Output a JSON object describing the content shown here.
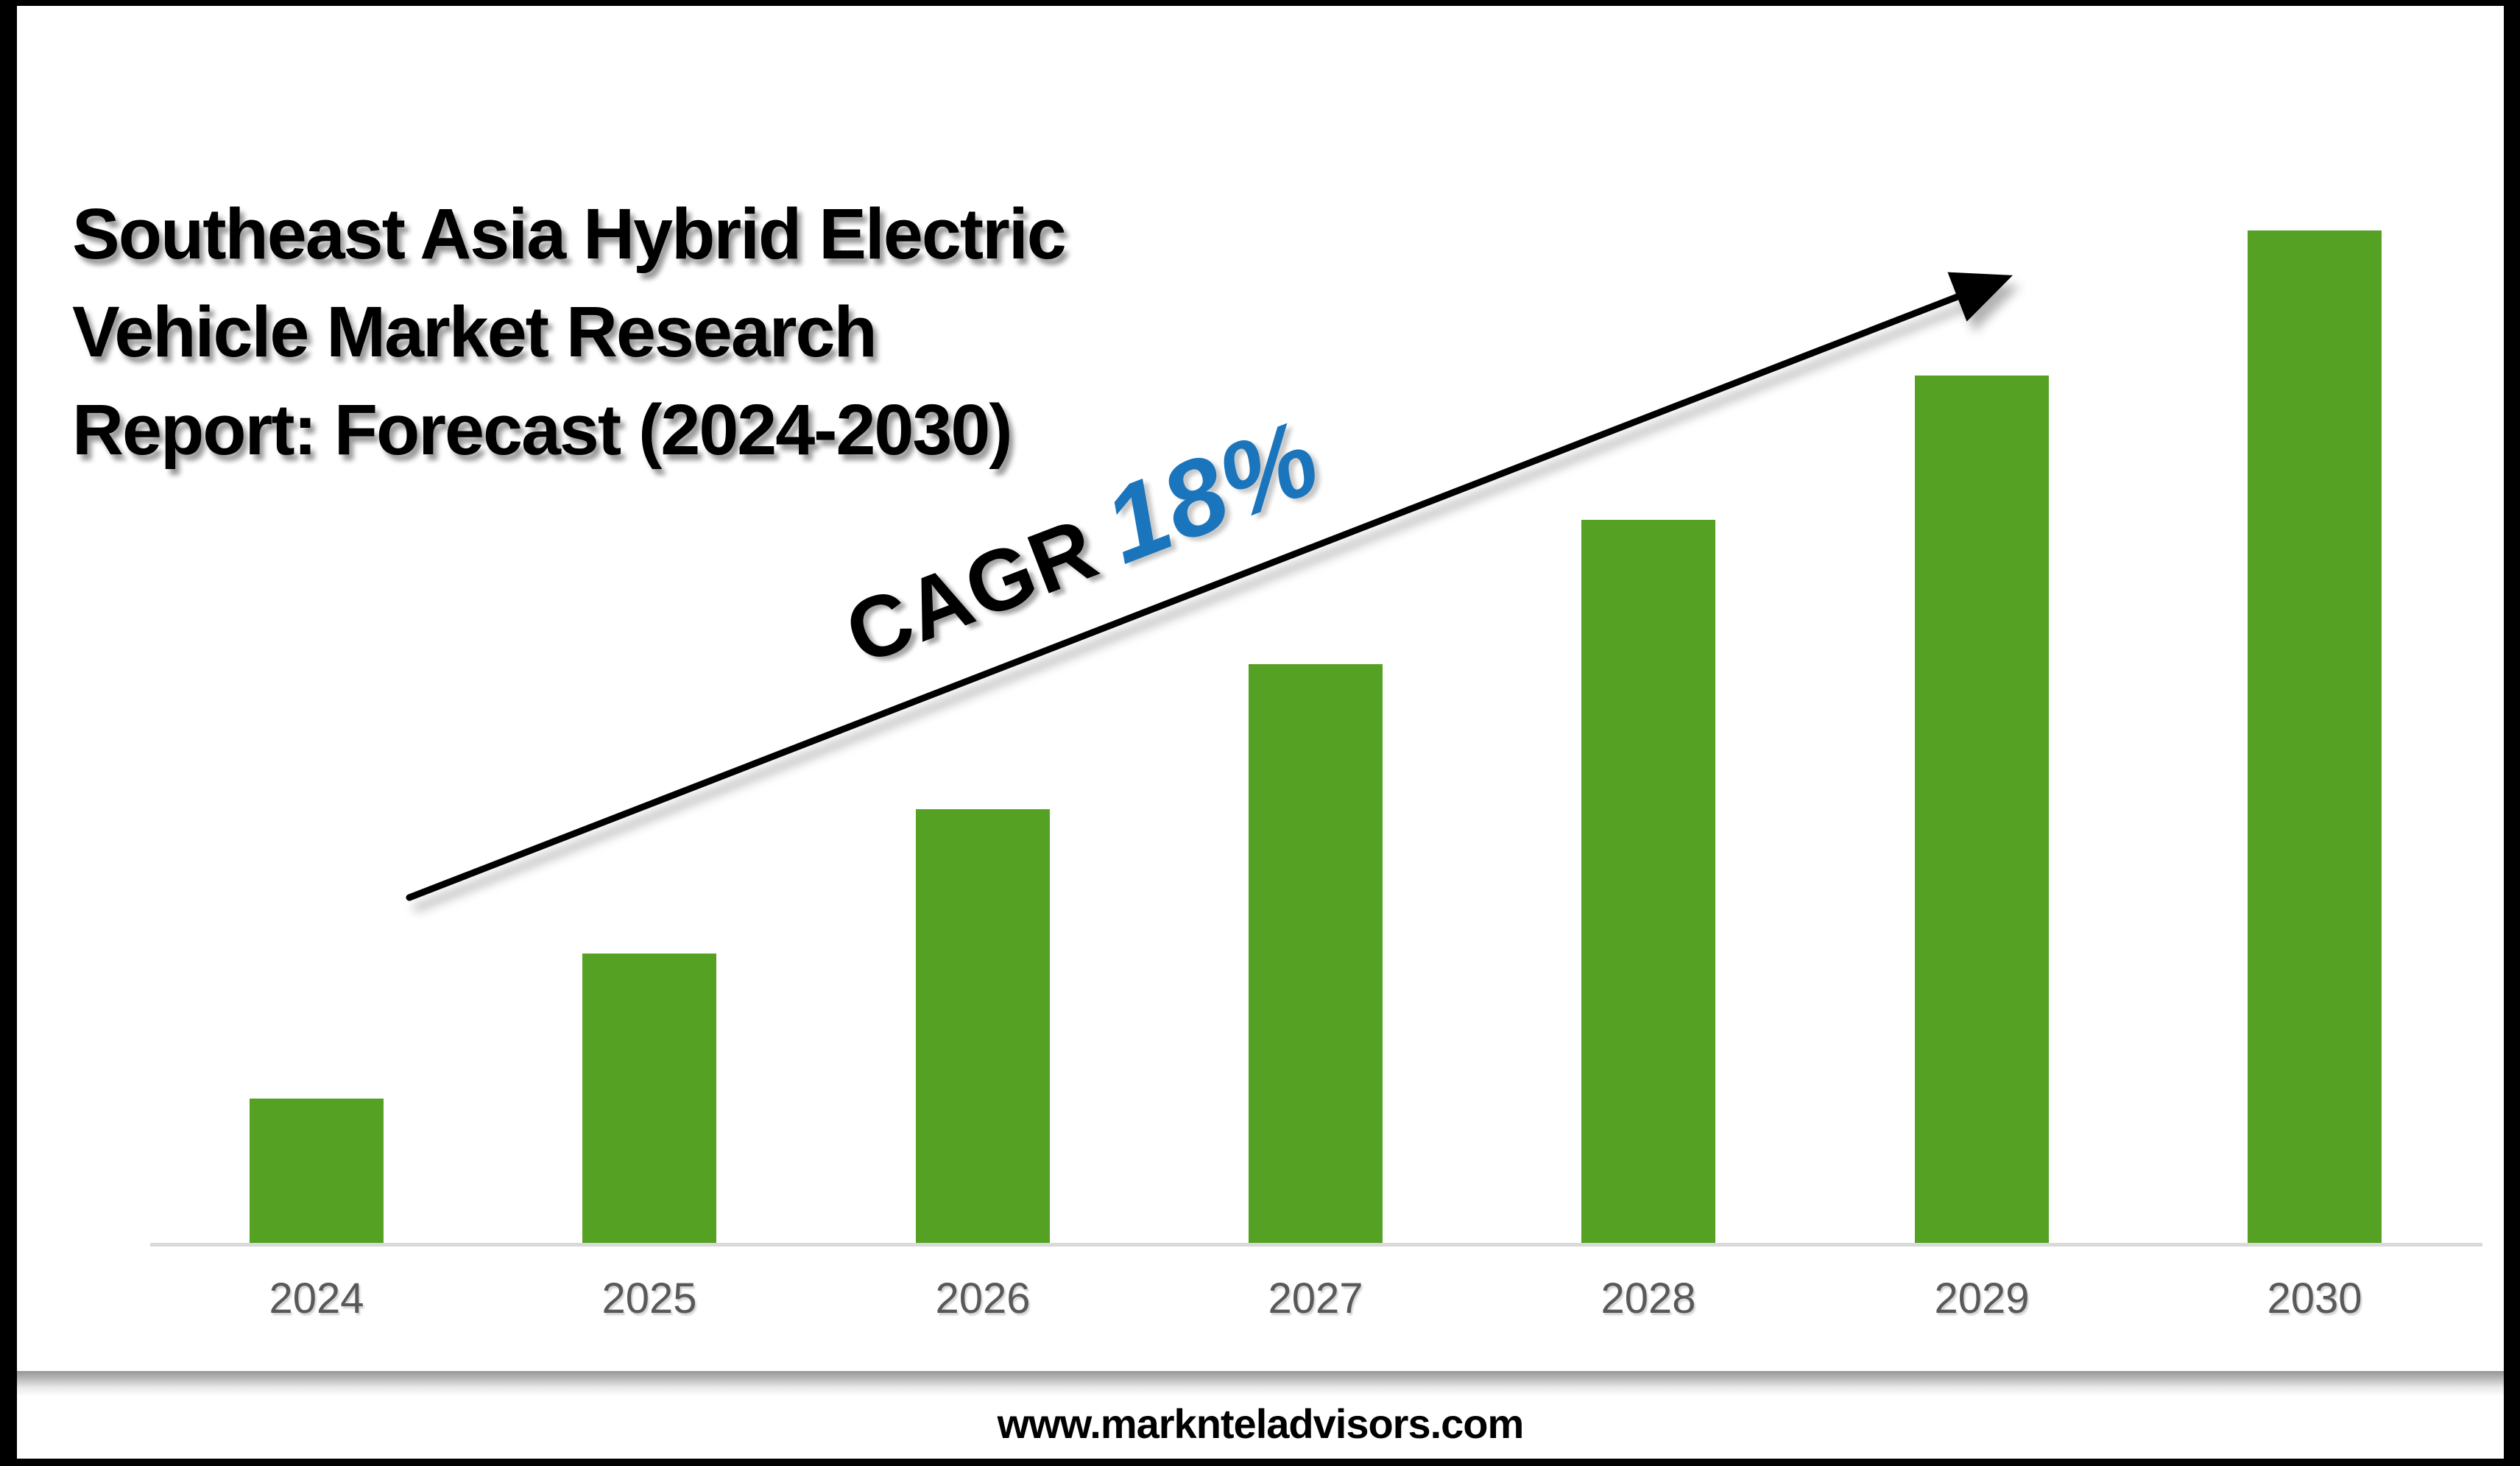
{
  "title": {
    "full_text": "Southeast Asia Hybrid Electric Vehicle Market Research Report: Forecast (2024-2030)",
    "lines": [
      "Southeast Asia Hybrid Electric",
      "Vehicle Market Research",
      "Report: Forecast (2024-2030)"
    ]
  },
  "annotation": {
    "cagr_label": "CAGR",
    "cagr_value": "18%"
  },
  "footer": {
    "website": "www.marknteladvisors.com"
  },
  "colors": {
    "bar_green": "#54A124",
    "cagr_blue": "#1B75BC",
    "axis_line_gray": "#D9D9D9",
    "tick_label_gray": "#595959",
    "frame_black": "#000000",
    "background_white": "#FFFFFF"
  },
  "chart_data": {
    "type": "bar",
    "title": "Southeast Asia Hybrid Electric Vehicle Market Research Report: Forecast (2024-2030)",
    "categories": [
      "2024",
      "2025",
      "2026",
      "2027",
      "2028",
      "2029",
      "2030"
    ],
    "values": [
      1,
      2,
      3,
      4,
      5,
      6,
      7
    ],
    "values_note": "no numeric y-axis shown; bar heights rise linearly, normalized so 2024 = 1 unit",
    "xlabel": "",
    "ylabel": "",
    "y_axis_visible": false,
    "gridlines": false,
    "legend": "none",
    "bar_color": "#54A124",
    "annotations": [
      {
        "text": "CAGR 18%",
        "style": "rotated along trend arrow, CAGR in black, 18% in blue italic"
      },
      {
        "type": "trend-arrow",
        "from_category_area": "2024",
        "to_category_area": "2030",
        "color": "#000000"
      }
    ]
  }
}
